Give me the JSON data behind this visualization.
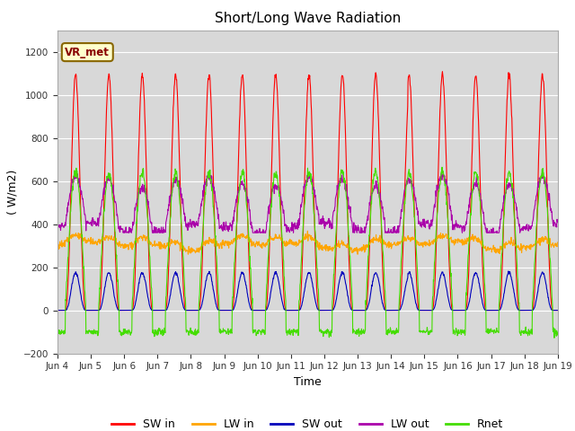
{
  "title": "Short/Long Wave Radiation",
  "xlabel": "Time",
  "ylabel": "( W/m2)",
  "ylim": [
    -200,
    1300
  ],
  "yticks": [
    -200,
    0,
    200,
    400,
    600,
    800,
    1000,
    1200
  ],
  "xlim_start": 0,
  "xlim_end": 360,
  "colors": {
    "SW_in": "#ff0000",
    "LW_in": "#ffa500",
    "SW_out": "#0000bb",
    "LW_out": "#aa00aa",
    "Rnet": "#44dd00"
  },
  "legend_labels": [
    "SW in",
    "LW in",
    "SW out",
    "LW out",
    "Rnet"
  ],
  "annotation_text": "VR_met",
  "annotation_facecolor": "#ffffcc",
  "annotation_edgecolor": "#886600",
  "annotation_textcolor": "#880000",
  "plot_bg_color": "#d8d8d8",
  "fig_bg_color": "#ffffff",
  "grid_color": "#ffffff",
  "n_days": 15,
  "hours_per_day": 24,
  "dt": 0.25,
  "SW_in_peak": 1040,
  "LW_in_base": 300,
  "LW_in_day_add": 80,
  "LW_out_base": 380,
  "LW_out_day_add": 220,
  "Rnet_peak": 640,
  "Rnet_night": -100,
  "x_tick_labels": [
    "Jun 4",
    "Jun 5",
    "Jun 6",
    "Jun 7",
    "Jun 8",
    "Jun 9",
    "Jun 10",
    "Jun 11",
    "Jun 12",
    "Jun 13",
    "Jun 14",
    "Jun 15",
    "Jun 16",
    "Jun 17",
    "Jun 18",
    "Jun 19"
  ],
  "x_tick_positions": [
    0,
    24,
    48,
    72,
    96,
    120,
    144,
    168,
    192,
    216,
    240,
    264,
    288,
    312,
    336,
    360
  ]
}
